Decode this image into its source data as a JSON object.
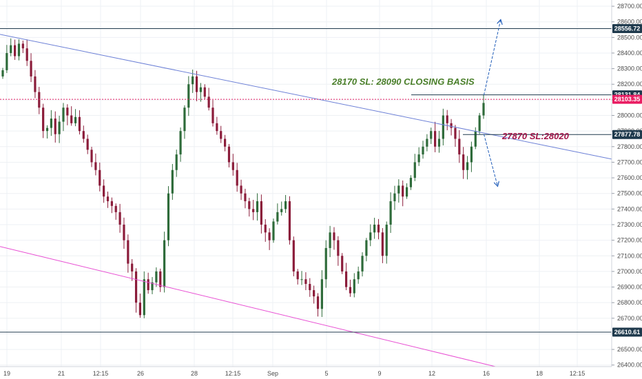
{
  "chart_data": {
    "type": "candlestick",
    "x_ticks": [
      "19",
      "21",
      "12:15",
      "26",
      "28",
      "12:15",
      "Sep",
      "5",
      "9",
      "12",
      "16",
      "18",
      "12:15"
    ],
    "y_ticks": [
      26400,
      26500,
      26600,
      26700,
      26800,
      26900,
      27000,
      27100,
      27200,
      27300,
      27400,
      27500,
      27600,
      27700,
      27800,
      27900,
      28000,
      28100,
      28200,
      28300,
      28400,
      28500,
      28600,
      28700
    ],
    "y_tick_labels": [
      "26400.00",
      "26500.00",
      "26600.00",
      "26700.00",
      "26800.00",
      "26900.00",
      "27000.00",
      "27100.00",
      "27200.00",
      "27300.00",
      "27400.00",
      "27500.00",
      "27600.00",
      "27700.00",
      "27800.00",
      "27900.00",
      "28000.00",
      "28100.00",
      "28200.00",
      "28300.00",
      "28400.00",
      "28500.00",
      "28600.00",
      "28700.00"
    ],
    "ylim": [
      26390,
      28740
    ],
    "closes": [
      28290,
      28400,
      28450,
      28380,
      28460,
      28430,
      28350,
      28250,
      28150,
      28050,
      27900,
      27920,
      27980,
      27880,
      27960,
      28050,
      28000,
      27950,
      27990,
      27900,
      27850,
      27780,
      27700,
      27650,
      27550,
      27480,
      27450,
      27420,
      27380,
      27300,
      27200,
      27050,
      27000,
      26800,
      26720,
      26950,
      26880,
      26930,
      27000,
      26900,
      27200,
      27500,
      27650,
      27750,
      27900,
      28050,
      28200,
      28250,
      28150,
      28180,
      28120,
      28050,
      27950,
      27900,
      27850,
      27800,
      27700,
      27650,
      27550,
      27500,
      27450,
      27400,
      27380,
      27450,
      27300,
      27250,
      27200,
      27320,
      27380,
      27400,
      27450,
      27200,
      27000,
      26950,
      26950,
      26920,
      26880,
      26840,
      26760,
      26950,
      27150,
      27250,
      27200,
      27100,
      27000,
      26900,
      26860,
      26950,
      27000,
      27100,
      27200,
      27250,
      27300,
      27250,
      27100,
      27300,
      27450,
      27500,
      27550,
      27480,
      27540,
      27600,
      27700,
      27750,
      27800,
      27850,
      27900,
      27800,
      27850,
      28000,
      27950,
      27920,
      27850,
      27750,
      27650,
      27700,
      27800,
      27900,
      28000,
      28080
    ],
    "levels": [
      {
        "value": 28556.72,
        "label": "28556.72",
        "color": "#1f3a4d"
      },
      {
        "value": 28131.84,
        "label": "28131.84",
        "color": "#1f3a4d"
      },
      {
        "value": 28103.35,
        "label": "28103.35",
        "color": "#e91e63"
      },
      {
        "value": 27877.78,
        "label": "27877.78",
        "color": "#1f3a4d"
      },
      {
        "value": 26610.61,
        "label": "26610.61",
        "color": "#1f3a4d"
      }
    ],
    "trendlines": [
      {
        "from": [
          0,
          28520
        ],
        "to": [
          1,
          27720
        ],
        "color": "#6b7fd6"
      },
      {
        "from": [
          0,
          27160
        ],
        "to": [
          0.81,
          26390
        ],
        "color": "#e84fd3"
      }
    ],
    "arrows": [
      {
        "from": [
          0.755,
          28130
        ],
        "to": [
          0.78,
          28610
        ],
        "color": "#1e5bb8"
      },
      {
        "from": [
          0.755,
          27880
        ],
        "to": [
          0.775,
          27550
        ],
        "color": "#1e5bb8"
      }
    ],
    "annotations": [
      {
        "text": "28170 SL: 28090 CLOSING BASIS",
        "color": "#4a7f2a"
      },
      {
        "text": "27870 SL:28020",
        "color": "#a3164a"
      }
    ],
    "colors": {
      "up": "#2e6b3a",
      "down": "#8b1c3a",
      "grid": "#eef0f4",
      "axis": "#555555"
    }
  }
}
